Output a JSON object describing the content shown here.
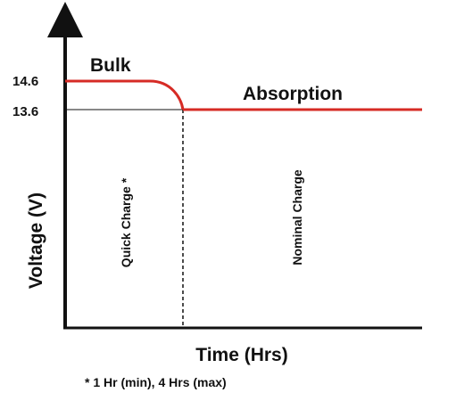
{
  "chart_data": {
    "type": "line",
    "title": "",
    "xlabel": "Time (Hrs)",
    "ylabel": "Voltage (V)",
    "yticks": [
      "14.6",
      "13.6"
    ],
    "series": [
      {
        "stage": "Bulk",
        "voltage": 14.6
      },
      {
        "stage": "Absorption",
        "voltage": 13.6
      }
    ],
    "regions": [
      {
        "label": "Quick Charge *"
      },
      {
        "label": "Nominal Charge"
      }
    ],
    "footnote": "* 1 Hr (min), 4 Hrs (max)",
    "line_color": "#d62b25",
    "grid": false
  }
}
